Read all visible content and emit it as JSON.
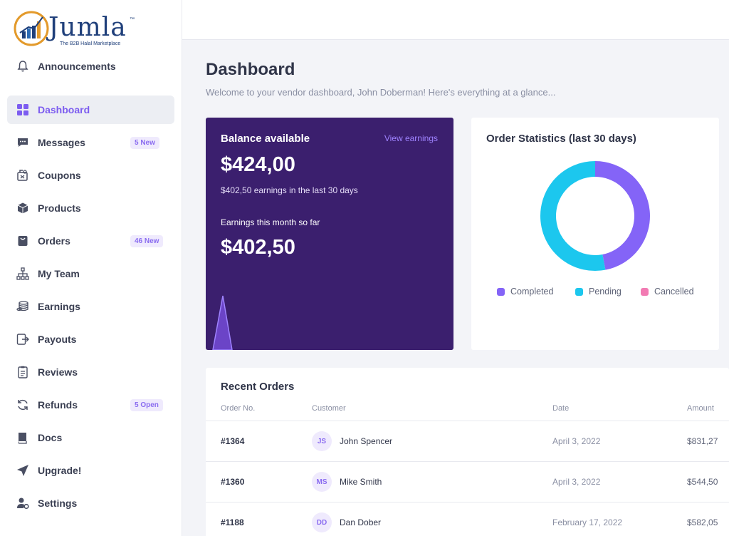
{
  "logo": {
    "name": "Jumla",
    "tm": "™",
    "tagline": "The B2B Halal Marketplace"
  },
  "sidebar": {
    "items": [
      {
        "label": "Announcements",
        "icon": "bell-icon"
      },
      {
        "label": "Dashboard",
        "icon": "grid-icon",
        "active": true
      },
      {
        "label": "Messages",
        "icon": "chat-icon",
        "badge": "5 New"
      },
      {
        "label": "Coupons",
        "icon": "coupon-icon"
      },
      {
        "label": "Products",
        "icon": "box-icon"
      },
      {
        "label": "Orders",
        "icon": "bag-icon",
        "badge": "46 New"
      },
      {
        "label": "My Team",
        "icon": "org-chart-icon"
      },
      {
        "label": "Earnings",
        "icon": "coins-icon"
      },
      {
        "label": "Payouts",
        "icon": "payout-icon"
      },
      {
        "label": "Reviews",
        "icon": "clipboard-icon"
      },
      {
        "label": "Refunds",
        "icon": "refresh-icon",
        "badge": "5 Open"
      },
      {
        "label": "Docs",
        "icon": "book-icon"
      },
      {
        "label": "Upgrade!",
        "icon": "send-icon"
      },
      {
        "label": "Settings",
        "icon": "user-gear-icon"
      }
    ]
  },
  "page": {
    "title": "Dashboard",
    "subtitle": "Welcome to your vendor dashboard, John Doberman! Here's everything at a glance..."
  },
  "balance": {
    "title": "Balance available",
    "link": "View earnings",
    "amount": "$424,00",
    "sub": "$402,50 earnings in the last 30 days",
    "month_label": "Earnings this month so far",
    "month_amount": "$402,50"
  },
  "stats": {
    "title": "Order Statistics (last 30 days)",
    "legend": [
      {
        "label": "Completed",
        "color": "#8464f7"
      },
      {
        "label": "Pending",
        "color": "#1cc7ee"
      },
      {
        "label": "Cancelled",
        "color": "#f27bb3"
      }
    ]
  },
  "chart_data": {
    "type": "pie",
    "title": "Order Statistics (last 30 days)",
    "categories": [
      "Completed",
      "Pending",
      "Cancelled"
    ],
    "values": [
      47,
      53,
      0
    ],
    "colors": [
      "#8464f7",
      "#1cc7ee",
      "#f27bb3"
    ],
    "legend": "bottom"
  },
  "orders": {
    "title": "Recent Orders",
    "columns": [
      "Order No.",
      "Customer",
      "Date",
      "Amount"
    ],
    "rows": [
      {
        "no": "#1364",
        "initials": "JS",
        "customer": "John Spencer",
        "date": "April 3, 2022",
        "amount": "$831,27"
      },
      {
        "no": "#1360",
        "initials": "MS",
        "customer": "Mike Smith",
        "date": "April 3, 2022",
        "amount": "$544,50"
      },
      {
        "no": "#1188",
        "initials": "DD",
        "customer": "Dan Dober",
        "date": "February 17, 2022",
        "amount": "$582,05"
      }
    ]
  }
}
